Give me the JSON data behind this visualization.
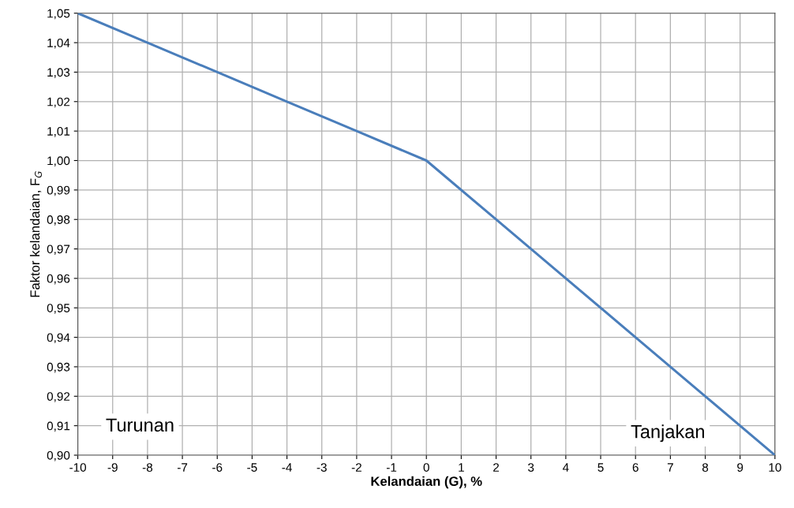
{
  "chart_data": {
    "type": "line",
    "xlabel": "Kelandaian (G), %",
    "ylabel": "Faktor kelandaian, F$_{G}$",
    "x": [
      -10,
      -8,
      -6,
      -4,
      -2,
      0,
      2,
      4,
      6,
      8,
      10
    ],
    "series": [
      {
        "color": "#4a7ebb",
        "values": [
          1.05,
          1.04,
          1.03,
          1.02,
          1.01,
          1.0,
          0.98,
          0.96,
          0.94,
          0.92,
          0.9
        ]
      }
    ],
    "xlim": [
      -10,
      10
    ],
    "xticks": [
      -10,
      -9,
      -8,
      -7,
      -6,
      -5,
      -4,
      -3,
      -2,
      -1,
      0,
      1,
      2,
      3,
      4,
      5,
      6,
      7,
      8,
      9,
      10
    ],
    "ylim": [
      0.9,
      1.05
    ],
    "yticks": [
      {
        "value": 0.9,
        "label": "0,90"
      },
      {
        "value": 0.91,
        "label": "0,91"
      },
      {
        "value": 0.92,
        "label": "0,92"
      },
      {
        "value": 0.93,
        "label": "0,93"
      },
      {
        "value": 0.94,
        "label": "0,94"
      },
      {
        "value": 0.95,
        "label": "0,95"
      },
      {
        "value": 0.96,
        "label": "0,96"
      },
      {
        "value": 0.97,
        "label": "0,97"
      },
      {
        "value": 0.98,
        "label": "0,98"
      },
      {
        "value": 0.99,
        "label": "0,99"
      },
      {
        "value": 1.0,
        "label": "1,00"
      },
      {
        "value": 1.01,
        "label": "1,01"
      },
      {
        "value": 1.02,
        "label": "1,02"
      },
      {
        "value": 1.03,
        "label": "1,03"
      },
      {
        "value": 1.04,
        "label": "1,04"
      },
      {
        "value": 1.05,
        "label": "1,05"
      }
    ],
    "grid": true,
    "legend": false,
    "marker": "none",
    "line_style": "solid",
    "annotations": [
      "Turunan",
      "Tanjakan"
    ]
  }
}
